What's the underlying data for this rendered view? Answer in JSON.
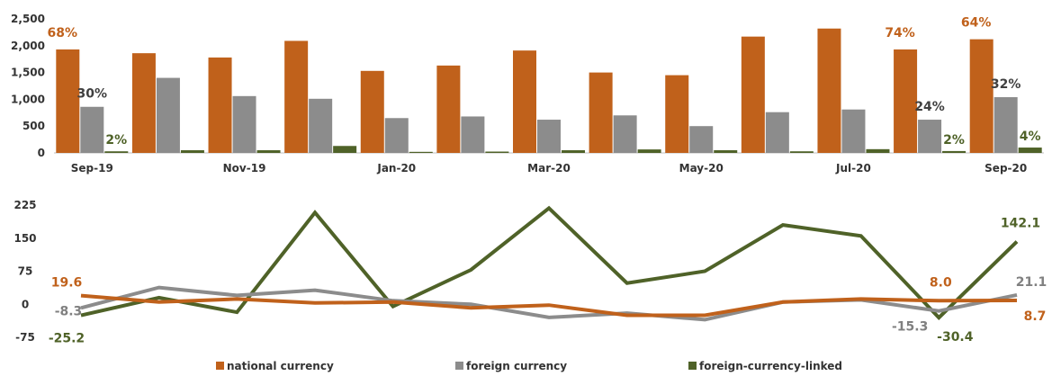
{
  "colors": {
    "national": "#C0611B",
    "foreign": "#8C8C8C",
    "linked": "#4F6228"
  },
  "chart_data": [
    {
      "type": "bar",
      "categories": [
        "Sep-19",
        "Oct-19",
        "Nov-19",
        "Dec-19",
        "Jan-20",
        "Feb-20",
        "Mar-20",
        "Apr-20",
        "May-20",
        "Jun-20",
        "Jul-20",
        "Aug-20",
        "Sep-20"
      ],
      "tick_labels": [
        "Sep-19",
        "Nov-19",
        "Jan-20",
        "Mar-20",
        "May-20",
        "Jul-20",
        "Sep-20"
      ],
      "ylim": [
        0,
        2500
      ],
      "yticks": [
        "0",
        "500",
        "1,000",
        "1,500",
        "2,000",
        "2,500"
      ],
      "series": [
        {
          "name": "national currency",
          "color_key": "national",
          "values": [
            1930,
            1860,
            1780,
            2090,
            1530,
            1630,
            1910,
            1500,
            1450,
            2170,
            2320,
            1930,
            2120
          ]
        },
        {
          "name": "foreign currency",
          "color_key": "foreign",
          "values": [
            860,
            1400,
            1060,
            1010,
            650,
            680,
            620,
            700,
            500,
            760,
            810,
            620,
            1040
          ]
        },
        {
          "name": "foreign-currency-linked",
          "color_key": "linked",
          "values": [
            30,
            50,
            50,
            130,
            20,
            25,
            50,
            65,
            50,
            30,
            70,
            35,
            100
          ]
        }
      ],
      "annotations": [
        {
          "text": "68%",
          "series": 0,
          "index": 0
        },
        {
          "text": "30%",
          "series": 1,
          "index": 0
        },
        {
          "text": "2%",
          "series": 2,
          "index": 0
        },
        {
          "text": "74%",
          "series": 0,
          "index": 11
        },
        {
          "text": "24%",
          "series": 1,
          "index": 11
        },
        {
          "text": "2%",
          "series": 2,
          "index": 11
        },
        {
          "text": "64%",
          "series": 0,
          "index": 12
        },
        {
          "text": "32%",
          "series": 1,
          "index": 12
        },
        {
          "text": "4%",
          "series": 2,
          "index": 12
        }
      ]
    },
    {
      "type": "line",
      "categories": [
        "Sep-19",
        "Oct-19",
        "Nov-19",
        "Dec-19",
        "Jan-20",
        "Feb-20",
        "Mar-20",
        "Apr-20",
        "May-20",
        "Jun-20",
        "Jul-20",
        "Aug-20",
        "Sep-20"
      ],
      "ylim": [
        -75,
        225
      ],
      "yticks": [
        "-75",
        "0",
        "75",
        "150",
        "225"
      ],
      "series": [
        {
          "name": "national currency",
          "color_key": "national",
          "values": [
            19.6,
            5,
            12,
            3,
            5,
            -8,
            -2,
            -25,
            -25,
            5,
            12,
            8.0,
            8.7
          ]
        },
        {
          "name": "foreign currency",
          "color_key": "foreign",
          "values": [
            -8.3,
            38,
            20,
            32,
            8,
            0,
            -30,
            -20,
            -35,
            5,
            10,
            -15.3,
            21.1
          ]
        },
        {
          "name": "foreign-currency-linked",
          "color_key": "linked",
          "values": [
            -25.2,
            15,
            -18,
            208,
            -5,
            78,
            218,
            48,
            75,
            180,
            155,
            -30.4,
            142.1
          ]
        }
      ],
      "annotations": [
        {
          "text": "19.6",
          "series": 0,
          "index": 0
        },
        {
          "text": "-8.3",
          "series": 1,
          "index": 0
        },
        {
          "text": "-25.2",
          "series": 2,
          "index": 0
        },
        {
          "text": "8.0",
          "series": 0,
          "index": 11
        },
        {
          "text": "-15.3",
          "series": 1,
          "index": 11
        },
        {
          "text": "-30.4",
          "series": 2,
          "index": 11
        },
        {
          "text": "142.1",
          "series": 2,
          "index": 12
        },
        {
          "text": "21.1",
          "series": 1,
          "index": 12
        },
        {
          "text": "8.7",
          "series": 0,
          "index": 12
        }
      ]
    }
  ],
  "legend": [
    {
      "label": "national currency",
      "color_key": "national"
    },
    {
      "label": "foreign currency",
      "color_key": "foreign"
    },
    {
      "label": "foreign-currency-linked",
      "color_key": "linked"
    }
  ]
}
